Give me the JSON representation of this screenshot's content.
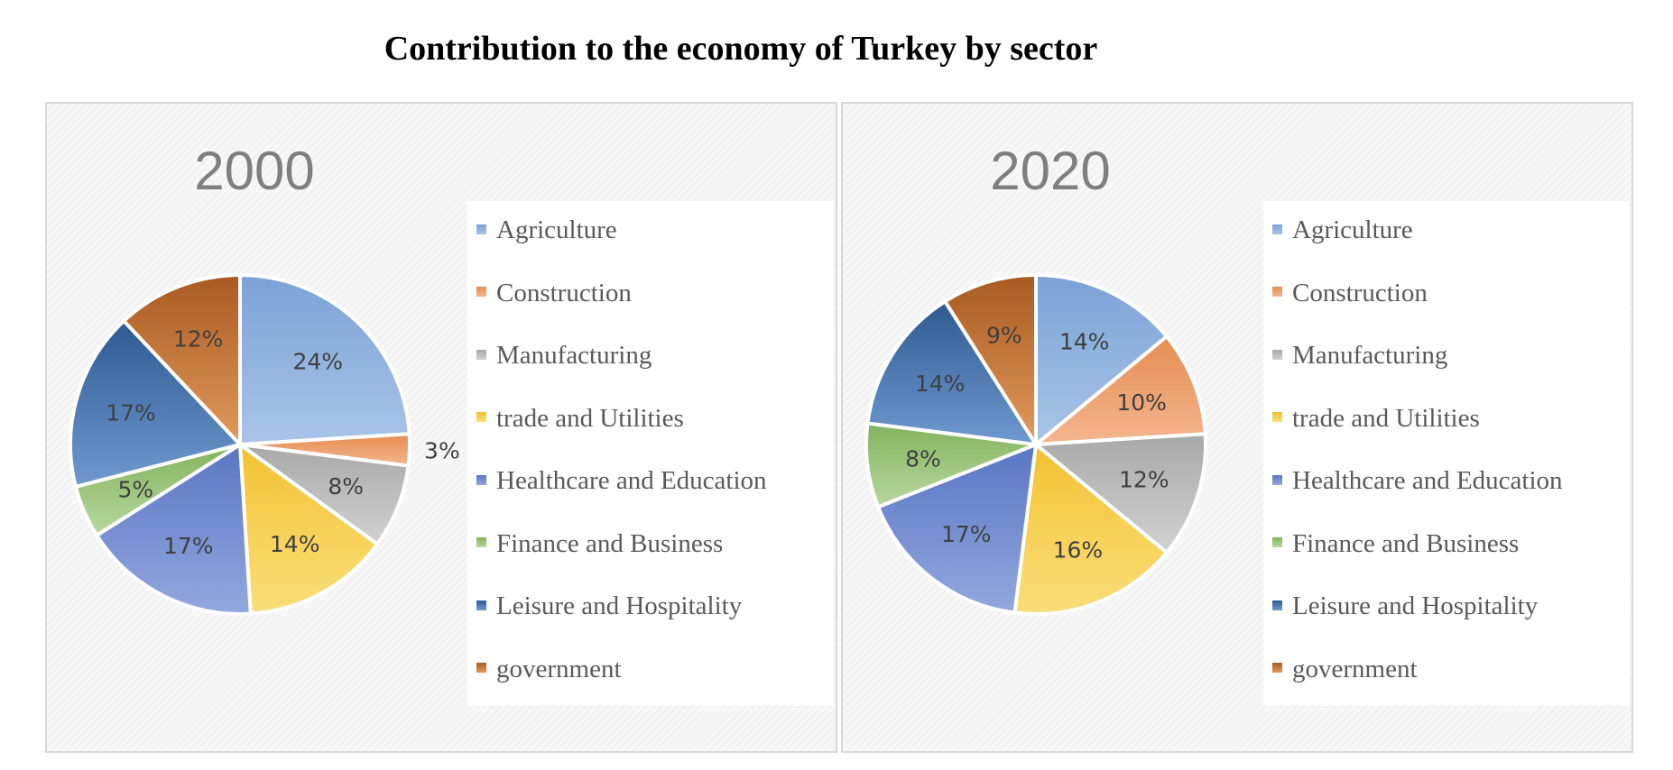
{
  "title": "Contribution to the economy of Turkey by sector",
  "chart_data": [
    {
      "type": "pie",
      "title": "2000",
      "categories": [
        "Agriculture",
        "Construction",
        "Manufacturing",
        "trade and Utilities",
        "Healthcare and Education",
        "Finance and Business",
        "Leisure and Hospitality",
        "government"
      ],
      "values": [
        24,
        3,
        8,
        14,
        17,
        5,
        17,
        12
      ],
      "labels": [
        "24%",
        "3%",
        "8%",
        "14%",
        "17%",
        "5%",
        "17%",
        "12%"
      ],
      "legend_position": "right"
    },
    {
      "type": "pie",
      "title": "2020",
      "categories": [
        "Agriculture",
        "Construction",
        "Manufacturing",
        "trade and Utilities",
        "Healthcare and Education",
        "Finance and Business",
        "Leisure and Hospitality",
        "government"
      ],
      "values": [
        14,
        10,
        12,
        16,
        17,
        8,
        14,
        9
      ],
      "labels": [
        "14%",
        "10%",
        "12%",
        "16%",
        "17%",
        "8%",
        "14%",
        "9%"
      ],
      "legend_position": "right"
    }
  ],
  "colors": {
    "Agriculture": [
      "#a9c4e8",
      "#7ba2d6"
    ],
    "Construction": [
      "#f4b690",
      "#e68c50"
    ],
    "Manufacturing": [
      "#d2d2d2",
      "#a8a8a8"
    ],
    "trade and Utilities": [
      "#fbde7a",
      "#f3c232"
    ],
    "Healthcare and Education": [
      "#93a8de",
      "#5a76c4"
    ],
    "Finance and Business": [
      "#b8d8a0",
      "#82b35c"
    ],
    "Leisure and Hospitality": [
      "#6f9ad0",
      "#2e5a92"
    ],
    "government": [
      "#e39a5a",
      "#a85a22"
    ]
  }
}
